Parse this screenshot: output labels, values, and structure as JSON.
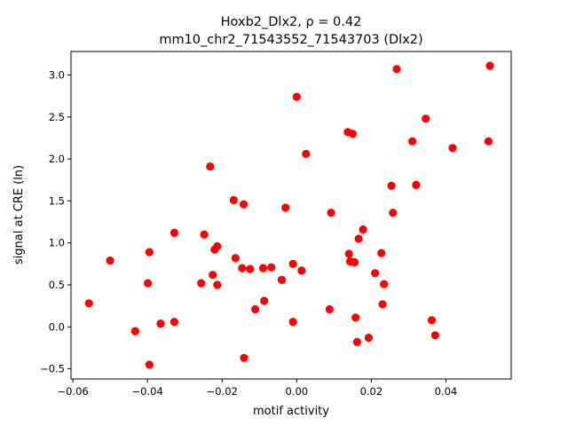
{
  "chart_data": {
    "type": "scatter",
    "title_line1": "Hoxb2_Dlx2, ρ = 0.42",
    "title_line2": "mm10_chr2_71543552_71543703 (Dlx2)",
    "xlabel": "motif activity",
    "ylabel": "signal at CRE (ln)",
    "xlim": [
      -0.0605,
      0.0575
    ],
    "ylim": [
      -0.62,
      3.28
    ],
    "xticks": [
      -0.06,
      -0.04,
      -0.02,
      0.0,
      0.02,
      0.04
    ],
    "xtick_labels": [
      "−0.06",
      "−0.04",
      "−0.02",
      "0.00",
      "0.02",
      "0.04"
    ],
    "yticks": [
      -0.5,
      0.0,
      0.5,
      1.0,
      1.5,
      2.0,
      2.5,
      3.0
    ],
    "ytick_labels": [
      "−0.5",
      "0.0",
      "0.5",
      "1.0",
      "1.5",
      "2.0",
      "2.5",
      "3.0"
    ],
    "marker_color": "#ff0000",
    "grid": false,
    "points": [
      [
        -0.0557,
        0.28
      ],
      [
        -0.05,
        0.79
      ],
      [
        -0.0433,
        -0.05
      ],
      [
        -0.0399,
        0.52
      ],
      [
        -0.0395,
        0.89
      ],
      [
        -0.0395,
        -0.45
      ],
      [
        -0.0365,
        0.04
      ],
      [
        -0.0328,
        1.12
      ],
      [
        -0.0328,
        0.06
      ],
      [
        -0.0256,
        0.52
      ],
      [
        -0.0248,
        1.1
      ],
      [
        -0.0232,
        1.91
      ],
      [
        -0.0225,
        0.62
      ],
      [
        -0.022,
        0.92
      ],
      [
        -0.0213,
        0.96
      ],
      [
        -0.0213,
        0.5
      ],
      [
        -0.0169,
        1.51
      ],
      [
        -0.0164,
        0.82
      ],
      [
        -0.0146,
        0.7
      ],
      [
        -0.0142,
        1.46
      ],
      [
        -0.0141,
        -0.37
      ],
      [
        -0.0125,
        0.69
      ],
      [
        -0.0111,
        0.21
      ],
      [
        -0.009,
        0.7
      ],
      [
        -0.0087,
        0.31
      ],
      [
        -0.0068,
        0.71
      ],
      [
        -0.004,
        0.56
      ],
      [
        -0.003,
        1.42
      ],
      [
        -0.001,
        0.75
      ],
      [
        -0.001,
        0.06
      ],
      [
        0.0,
        2.74
      ],
      [
        0.0013,
        0.67
      ],
      [
        0.0025,
        2.06
      ],
      [
        0.0088,
        0.21
      ],
      [
        0.0092,
        1.36
      ],
      [
        0.0137,
        2.32
      ],
      [
        0.014,
        0.87
      ],
      [
        0.0143,
        0.78
      ],
      [
        0.015,
        2.3
      ],
      [
        0.0155,
        0.77
      ],
      [
        0.0158,
        0.11
      ],
      [
        0.0162,
        -0.18
      ],
      [
        0.0166,
        1.05
      ],
      [
        0.0178,
        1.16
      ],
      [
        0.0193,
        -0.13
      ],
      [
        0.021,
        0.64
      ],
      [
        0.0227,
        0.88
      ],
      [
        0.023,
        0.27
      ],
      [
        0.0234,
        0.51
      ],
      [
        0.0254,
        1.68
      ],
      [
        0.0258,
        1.36
      ],
      [
        0.0268,
        3.07
      ],
      [
        0.031,
        2.21
      ],
      [
        0.032,
        1.69
      ],
      [
        0.0346,
        2.48
      ],
      [
        0.0362,
        0.08
      ],
      [
        0.0371,
        -0.1
      ],
      [
        0.0418,
        2.13
      ],
      [
        0.0514,
        2.21
      ],
      [
        0.0518,
        3.11
      ]
    ]
  }
}
